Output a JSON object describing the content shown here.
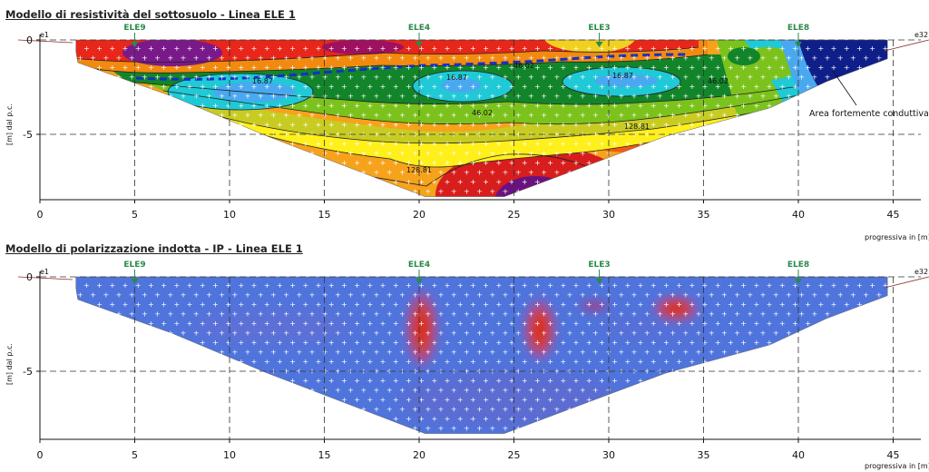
{
  "panels": [
    {
      "title": "Modello di resistività del sottosuolo - Linea ELE 1",
      "ylabel": "[m] dal p.c.",
      "xlabel": "progressiva in [m]",
      "annotation": "Area fortemente conduttiva",
      "contour_labels": [
        "16.87",
        "16.87",
        "16.87",
        "46.02",
        "46.02",
        "46.02",
        "128.81",
        "128.81"
      ]
    },
    {
      "title": "Modello di polarizzazione indotta - IP - Linea ELE 1",
      "ylabel": "[m] dal p.c.",
      "xlabel": "progressiva in [m]"
    }
  ],
  "electrode_markers": [
    {
      "label": "ELE9",
      "x": 5
    },
    {
      "label": "ELE4",
      "x": 20
    },
    {
      "label": "ELE3",
      "x": 29.5
    },
    {
      "label": "ELE8",
      "x": 40
    }
  ],
  "end_labels": {
    "left": "e1",
    "right": "e32"
  },
  "chart_data": [
    {
      "type": "heatmap",
      "title": "Modello di resistività del sottosuolo - Linea ELE 1",
      "xlabel": "progressiva in [m]",
      "ylabel": "[m] dal p.c.",
      "x_ticks": [
        0,
        5,
        10,
        15,
        20,
        25,
        30,
        35,
        40,
        45
      ],
      "y_ticks": [
        0,
        -5
      ],
      "xlim": [
        0,
        46.5
      ],
      "ylim": [
        -8.4,
        0
      ],
      "contour_levels": [
        16.87,
        46.02,
        128.81
      ],
      "grid": true
    },
    {
      "type": "heatmap",
      "title": "Modello di polarizzazione indotta - IP - Linea ELE 1",
      "xlabel": "progressiva in [m]",
      "ylabel": "[m] dal p.c.",
      "x_ticks": [
        0,
        5,
        10,
        15,
        20,
        25,
        30,
        35,
        40,
        45
      ],
      "y_ticks": [
        0,
        -5
      ],
      "xlim": [
        0,
        46.5
      ],
      "ylim": [
        -8.4,
        0
      ],
      "grid": true
    }
  ]
}
